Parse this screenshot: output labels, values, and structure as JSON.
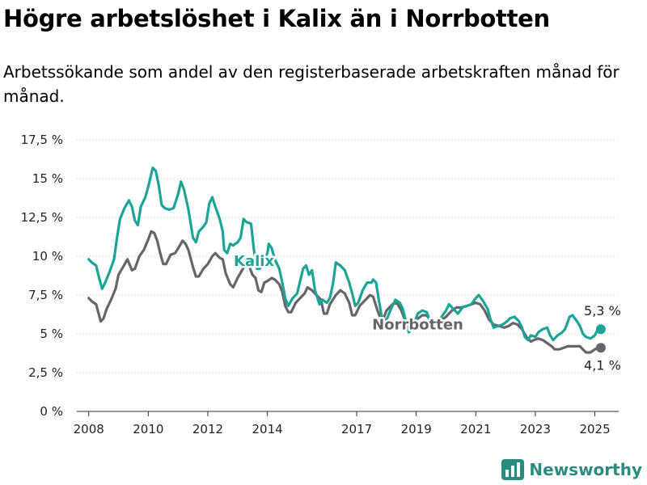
{
  "title": "Högre arbetslöshet i Kalix än i Norrbotten",
  "subtitle": "Arbetssökande som andel av den registerbaserade arbetskraften månad för månad.",
  "brand": {
    "name": "Newsworthy",
    "icon": "bar-chart-logo-icon",
    "color": "#2a8c80"
  },
  "chart_data": {
    "type": "line",
    "ylim": [
      0,
      17.5
    ],
    "yticks": [
      0,
      2.5,
      5,
      7.5,
      10,
      12.5,
      15,
      17.5
    ],
    "ytick_labels": [
      "0 %",
      "2,5 %",
      "5 %",
      "7,5 %",
      "10 %",
      "12,5 %",
      "15 %",
      "17,5 %"
    ],
    "xlim": [
      2007.6,
      2025.8
    ],
    "xticks": [
      2008,
      2010,
      2012,
      2014,
      2017,
      2019,
      2021,
      2023,
      2025
    ],
    "xtick_labels": [
      "2008",
      "2010",
      "2012",
      "2014",
      "2017",
      "2019",
      "2021",
      "2023",
      "2025"
    ],
    "grid": true,
    "series": [
      {
        "name": "Norrbotten",
        "color": "#66656d",
        "end_label": "4,1 %",
        "points": [
          [
            2008.0,
            7.3
          ],
          [
            2008.1,
            7.1
          ],
          [
            2008.25,
            6.9
          ],
          [
            2008.4,
            5.8
          ],
          [
            2008.5,
            6.0
          ],
          [
            2008.6,
            6.6
          ],
          [
            2008.75,
            7.2
          ],
          [
            2008.9,
            7.9
          ],
          [
            2009.0,
            8.8
          ],
          [
            2009.15,
            9.3
          ],
          [
            2009.3,
            9.8
          ],
          [
            2009.45,
            9.1
          ],
          [
            2009.55,
            9.2
          ],
          [
            2009.7,
            10.0
          ],
          [
            2009.85,
            10.4
          ],
          [
            2010.0,
            11.1
          ],
          [
            2010.1,
            11.6
          ],
          [
            2010.2,
            11.5
          ],
          [
            2010.3,
            11.0
          ],
          [
            2010.4,
            10.2
          ],
          [
            2010.5,
            9.5
          ],
          [
            2010.6,
            9.5
          ],
          [
            2010.75,
            10.1
          ],
          [
            2010.9,
            10.2
          ],
          [
            2011.0,
            10.5
          ],
          [
            2011.15,
            11.0
          ],
          [
            2011.25,
            10.8
          ],
          [
            2011.35,
            10.4
          ],
          [
            2011.5,
            9.3
          ],
          [
            2011.6,
            8.7
          ],
          [
            2011.7,
            8.7
          ],
          [
            2011.85,
            9.2
          ],
          [
            2011.95,
            9.4
          ],
          [
            2012.0,
            9.5
          ],
          [
            2012.15,
            10.0
          ],
          [
            2012.25,
            10.2
          ],
          [
            2012.4,
            9.9
          ],
          [
            2012.5,
            9.8
          ],
          [
            2012.6,
            8.9
          ],
          [
            2012.75,
            8.2
          ],
          [
            2012.85,
            8.0
          ],
          [
            2013.0,
            8.6
          ],
          [
            2013.15,
            9.1
          ],
          [
            2013.3,
            9.6
          ],
          [
            2013.4,
            9.3
          ],
          [
            2013.5,
            8.8
          ],
          [
            2013.6,
            8.6
          ],
          [
            2013.7,
            7.8
          ],
          [
            2013.8,
            7.7
          ],
          [
            2013.9,
            8.3
          ],
          [
            2014.0,
            8.4
          ],
          [
            2014.15,
            8.6
          ],
          [
            2014.25,
            8.5
          ],
          [
            2014.4,
            8.2
          ],
          [
            2014.5,
            7.7
          ],
          [
            2014.6,
            6.8
          ],
          [
            2014.7,
            6.4
          ],
          [
            2014.8,
            6.4
          ],
          [
            2014.95,
            7.0
          ],
          [
            2015.1,
            7.3
          ],
          [
            2015.25,
            7.6
          ],
          [
            2015.35,
            8.0
          ],
          [
            2015.5,
            7.8
          ],
          [
            2015.6,
            7.6
          ],
          [
            2015.8,
            7.2
          ],
          [
            2015.9,
            6.3
          ],
          [
            2016.0,
            6.3
          ],
          [
            2016.1,
            6.9
          ],
          [
            2016.3,
            7.5
          ],
          [
            2016.45,
            7.8
          ],
          [
            2016.6,
            7.6
          ],
          [
            2016.75,
            7.0
          ],
          [
            2016.85,
            6.2
          ],
          [
            2016.95,
            6.2
          ],
          [
            2017.1,
            6.8
          ],
          [
            2017.3,
            7.2
          ],
          [
            2017.45,
            7.5
          ],
          [
            2017.55,
            7.4
          ],
          [
            2017.7,
            6.5
          ],
          [
            2017.8,
            6.0
          ],
          [
            2017.9,
            6.0
          ],
          [
            2018.0,
            6.5
          ],
          [
            2018.2,
            6.9
          ],
          [
            2018.35,
            7.0
          ],
          [
            2018.5,
            6.5
          ],
          [
            2018.6,
            6.0
          ],
          [
            2018.7,
            5.6
          ],
          [
            2018.85,
            5.6
          ],
          [
            2019.0,
            5.9
          ],
          [
            2019.2,
            6.2
          ],
          [
            2019.35,
            6.2
          ],
          [
            2019.5,
            5.8
          ],
          [
            2019.7,
            5.6
          ],
          [
            2019.85,
            5.9
          ],
          [
            2020.0,
            6.1
          ],
          [
            2020.2,
            6.5
          ],
          [
            2020.35,
            6.7
          ],
          [
            2020.5,
            6.7
          ],
          [
            2020.7,
            6.8
          ],
          [
            2020.85,
            6.9
          ],
          [
            2021.0,
            7.0
          ],
          [
            2021.15,
            6.9
          ],
          [
            2021.3,
            6.5
          ],
          [
            2021.45,
            5.9
          ],
          [
            2021.6,
            5.6
          ],
          [
            2021.8,
            5.5
          ],
          [
            2021.95,
            5.4
          ],
          [
            2022.1,
            5.5
          ],
          [
            2022.25,
            5.7
          ],
          [
            2022.4,
            5.6
          ],
          [
            2022.55,
            5.3
          ],
          [
            2022.7,
            4.8
          ],
          [
            2022.85,
            4.5
          ],
          [
            2022.95,
            4.6
          ],
          [
            2023.1,
            4.7
          ],
          [
            2023.25,
            4.6
          ],
          [
            2023.4,
            4.4
          ],
          [
            2023.55,
            4.2
          ],
          [
            2023.65,
            4.0
          ],
          [
            2023.8,
            4.0
          ],
          [
            2023.95,
            4.1
          ],
          [
            2024.1,
            4.2
          ],
          [
            2024.3,
            4.2
          ],
          [
            2024.5,
            4.2
          ],
          [
            2024.6,
            4.0
          ],
          [
            2024.7,
            3.8
          ],
          [
            2024.85,
            3.8
          ],
          [
            2025.0,
            4.0
          ],
          [
            2025.1,
            4.1
          ],
          [
            2025.2,
            4.1
          ]
        ]
      },
      {
        "name": "Kalix",
        "color": "#1ca597",
        "end_label": "5,3 %",
        "points": [
          [
            2008.0,
            9.8
          ],
          [
            2008.1,
            9.6
          ],
          [
            2008.25,
            9.4
          ],
          [
            2008.35,
            8.6
          ],
          [
            2008.45,
            7.9
          ],
          [
            2008.55,
            8.3
          ],
          [
            2008.7,
            9.0
          ],
          [
            2008.85,
            9.8
          ],
          [
            2008.95,
            11.2
          ],
          [
            2009.05,
            12.4
          ],
          [
            2009.2,
            13.1
          ],
          [
            2009.35,
            13.6
          ],
          [
            2009.45,
            13.2
          ],
          [
            2009.55,
            12.3
          ],
          [
            2009.65,
            12.0
          ],
          [
            2009.75,
            13.2
          ],
          [
            2009.9,
            13.8
          ],
          [
            2010.0,
            14.5
          ],
          [
            2010.15,
            15.7
          ],
          [
            2010.25,
            15.5
          ],
          [
            2010.35,
            14.6
          ],
          [
            2010.45,
            13.3
          ],
          [
            2010.55,
            13.1
          ],
          [
            2010.7,
            13.0
          ],
          [
            2010.85,
            13.1
          ],
          [
            2011.0,
            14.0
          ],
          [
            2011.1,
            14.8
          ],
          [
            2011.2,
            14.3
          ],
          [
            2011.35,
            13.0
          ],
          [
            2011.5,
            11.2
          ],
          [
            2011.6,
            10.9
          ],
          [
            2011.7,
            11.6
          ],
          [
            2011.85,
            11.9
          ],
          [
            2011.95,
            12.2
          ],
          [
            2012.05,
            13.4
          ],
          [
            2012.15,
            13.8
          ],
          [
            2012.25,
            13.2
          ],
          [
            2012.4,
            12.4
          ],
          [
            2012.5,
            11.6
          ],
          [
            2012.55,
            10.4
          ],
          [
            2012.65,
            10.2
          ],
          [
            2012.75,
            10.8
          ],
          [
            2012.85,
            10.7
          ],
          [
            2013.0,
            10.9
          ],
          [
            2013.1,
            11.2
          ],
          [
            2013.2,
            12.4
          ],
          [
            2013.3,
            12.2
          ],
          [
            2013.45,
            12.1
          ],
          [
            2013.55,
            10.4
          ],
          [
            2013.65,
            9.2
          ],
          [
            2013.75,
            9.2
          ],
          [
            2013.9,
            9.8
          ],
          [
            2014.0,
            10.2
          ],
          [
            2014.05,
            10.8
          ],
          [
            2014.15,
            10.5
          ],
          [
            2014.25,
            9.8
          ],
          [
            2014.4,
            9.2
          ],
          [
            2014.5,
            8.3
          ],
          [
            2014.6,
            7.3
          ],
          [
            2014.7,
            6.8
          ],
          [
            2014.85,
            7.3
          ],
          [
            2015.0,
            7.6
          ],
          [
            2015.1,
            8.4
          ],
          [
            2015.2,
            9.2
          ],
          [
            2015.3,
            9.4
          ],
          [
            2015.4,
            8.8
          ],
          [
            2015.5,
            9.1
          ],
          [
            2015.6,
            7.8
          ],
          [
            2015.75,
            6.9
          ],
          [
            2015.85,
            7.2
          ],
          [
            2016.0,
            7.0
          ],
          [
            2016.1,
            7.3
          ],
          [
            2016.2,
            8.2
          ],
          [
            2016.3,
            9.6
          ],
          [
            2016.45,
            9.4
          ],
          [
            2016.6,
            9.1
          ],
          [
            2016.75,
            8.3
          ],
          [
            2016.85,
            7.6
          ],
          [
            2016.95,
            6.8
          ],
          [
            2017.05,
            7.0
          ],
          [
            2017.2,
            7.8
          ],
          [
            2017.35,
            8.3
          ],
          [
            2017.5,
            8.3
          ],
          [
            2017.55,
            8.5
          ],
          [
            2017.65,
            8.3
          ],
          [
            2017.75,
            7.1
          ],
          [
            2017.85,
            6.0
          ],
          [
            2018.0,
            5.9
          ],
          [
            2018.15,
            6.6
          ],
          [
            2018.3,
            7.2
          ],
          [
            2018.45,
            7.0
          ],
          [
            2018.55,
            6.6
          ],
          [
            2018.65,
            5.8
          ],
          [
            2018.75,
            5.1
          ],
          [
            2018.9,
            5.5
          ],
          [
            2019.05,
            6.3
          ],
          [
            2019.2,
            6.5
          ],
          [
            2019.35,
            6.4
          ],
          [
            2019.45,
            5.9
          ],
          [
            2019.6,
            5.4
          ],
          [
            2019.75,
            5.7
          ],
          [
            2019.85,
            6.1
          ],
          [
            2020.0,
            6.5
          ],
          [
            2020.1,
            6.9
          ],
          [
            2020.25,
            6.6
          ],
          [
            2020.4,
            6.3
          ],
          [
            2020.55,
            6.7
          ],
          [
            2020.7,
            6.8
          ],
          [
            2020.85,
            6.9
          ],
          [
            2021.0,
            7.3
          ],
          [
            2021.1,
            7.5
          ],
          [
            2021.25,
            7.1
          ],
          [
            2021.4,
            6.6
          ],
          [
            2021.5,
            5.9
          ],
          [
            2021.6,
            5.4
          ],
          [
            2021.75,
            5.5
          ],
          [
            2021.9,
            5.6
          ],
          [
            2022.05,
            5.8
          ],
          [
            2022.15,
            6.0
          ],
          [
            2022.3,
            6.1
          ],
          [
            2022.45,
            5.8
          ],
          [
            2022.55,
            5.4
          ],
          [
            2022.65,
            4.8
          ],
          [
            2022.75,
            4.6
          ],
          [
            2022.85,
            4.9
          ],
          [
            2023.0,
            4.8
          ],
          [
            2023.1,
            5.1
          ],
          [
            2023.25,
            5.3
          ],
          [
            2023.4,
            5.4
          ],
          [
            2023.5,
            4.9
          ],
          [
            2023.6,
            4.6
          ],
          [
            2023.75,
            4.9
          ],
          [
            2023.9,
            5.1
          ],
          [
            2024.0,
            5.3
          ],
          [
            2024.15,
            6.1
          ],
          [
            2024.25,
            6.2
          ],
          [
            2024.4,
            5.8
          ],
          [
            2024.5,
            5.5
          ],
          [
            2024.6,
            5.0
          ],
          [
            2024.7,
            4.8
          ],
          [
            2024.85,
            4.7
          ],
          [
            2025.0,
            4.9
          ],
          [
            2025.1,
            5.3
          ],
          [
            2025.2,
            5.3
          ]
        ]
      }
    ]
  }
}
